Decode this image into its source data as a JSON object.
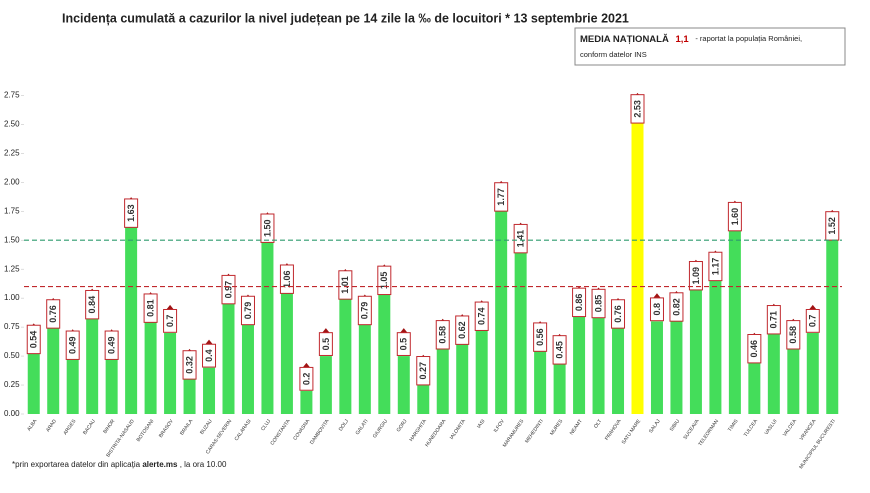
{
  "chart_data": {
    "type": "bar",
    "title": "Incidența cumulată a cazurilor la nivel județean pe 14 zile la ‰ de locuitori * 13 septembrie 2021",
    "annotation": {
      "label": "MEDIA NAȚIONALĂ",
      "value": "1,1",
      "note": "- raportat la populația României,",
      "note_2": "conform datelor INS"
    },
    "footnote": {
      "text": "*prin exportarea datelor din aplicația",
      "source": "alerte.ms",
      "time": ", la ora 10.00"
    },
    "categories": [
      "ALBA",
      "ARAD",
      "ARGES",
      "BACAU",
      "BIHOR",
      "BISTRITA-NASAUD",
      "BOTOSANI",
      "BRASOV",
      "BRAILA",
      "BUZAU",
      "CARAS-SEVERIN",
      "CALARASI",
      "CLUJ",
      "CONSTANTA",
      "COVASNA",
      "DAMBOVITA",
      "DOLJ",
      "GALATI",
      "GIURGIU",
      "GORJ",
      "HARGHITA",
      "HUNEDOARA",
      "IALOMITA",
      "IASI",
      "ILFOV",
      "MARAMURES",
      "MEHEDINTI",
      "MURES",
      "NEAMT",
      "OLT",
      "PRAHOVA",
      "SATU MARE",
      "SALAJ",
      "SIBIU",
      "SUCEAVA",
      "TELEORMAN",
      "TIMIS",
      "TULCEA",
      "VASLUI",
      "VALCEA",
      "VRANCEA",
      "MUNICIPIUL BUCURESTI"
    ],
    "values": [
      0.54,
      0.76,
      0.49,
      0.84,
      0.49,
      1.63,
      0.81,
      0.7,
      0.32,
      0.4,
      0.97,
      0.79,
      1.5,
      1.06,
      0.2,
      0.5,
      1.01,
      0.79,
      1.05,
      0.5,
      0.27,
      0.58,
      0.62,
      0.74,
      1.77,
      1.41,
      0.56,
      0.45,
      0.86,
      0.85,
      0.76,
      2.53,
      0.8,
      0.82,
      1.09,
      1.17,
      1.6,
      0.46,
      0.71,
      0.58,
      0.7,
      1.52
    ],
    "value_labels": [
      "0.54",
      "0.76",
      "0.49",
      "0.84",
      "0.49",
      "1.63",
      "0.81",
      "0.7",
      "0.32",
      "0.4",
      "0.97",
      "0.79",
      "1.50",
      "1.06",
      "0.2",
      "0.5",
      "1.01",
      "0.79",
      "1.05",
      "0.5",
      "0.27",
      "0.58",
      "0.62",
      "0.74",
      "1.77",
      "1.41",
      "0.56",
      "0.45",
      "0.86",
      "0.85",
      "0.76",
      "2.53",
      "0.8",
      "0.82",
      "1.09",
      "1.17",
      "1.60",
      "0.46",
      "0.71",
      "0.58",
      "0.7",
      "1.52"
    ],
    "colors": [
      "#44dd5a",
      "#44dd5a",
      "#44dd5a",
      "#44dd5a",
      "#44dd5a",
      "#44dd5a",
      "#44dd5a",
      "#44dd5a",
      "#44dd5a",
      "#44dd5a",
      "#44dd5a",
      "#44dd5a",
      "#44dd5a",
      "#44dd5a",
      "#44dd5a",
      "#44dd5a",
      "#44dd5a",
      "#44dd5a",
      "#44dd5a",
      "#44dd5a",
      "#44dd5a",
      "#44dd5a",
      "#44dd5a",
      "#44dd5a",
      "#44dd5a",
      "#44dd5a",
      "#44dd5a",
      "#44dd5a",
      "#44dd5a",
      "#44dd5a",
      "#44dd5a",
      "#ffff00",
      "#44dd5a",
      "#44dd5a",
      "#44dd5a",
      "#44dd5a",
      "#44dd5a",
      "#44dd5a",
      "#44dd5a",
      "#44dd5a",
      "#44dd5a",
      "#44dd5a"
    ],
    "reference_lines": [
      {
        "value": 1.5,
        "color": "#2e9c6e"
      },
      {
        "value": 1.1,
        "color": "#c0282d"
      }
    ],
    "ylim": [
      0,
      2.9
    ],
    "yticks": [
      {
        "value": 0,
        "label": "0.00"
      },
      {
        "value": 0.25,
        "label": "0.25"
      },
      {
        "value": 0.5,
        "label": "0.50"
      },
      {
        "value": 0.75,
        "label": "0.75"
      },
      {
        "value": 1,
        "label": "1.00"
      },
      {
        "value": 1.25,
        "label": "1.25"
      },
      {
        "value": 1.5,
        "label": "1.50"
      },
      {
        "value": 1.75,
        "label": "1.75"
      },
      {
        "value": 2,
        "label": "2.00"
      },
      {
        "value": 2.25,
        "label": "2.25"
      },
      {
        "value": 2.5,
        "label": "2.50"
      },
      {
        "value": 2.75,
        "label": "2.75"
      }
    ]
  }
}
